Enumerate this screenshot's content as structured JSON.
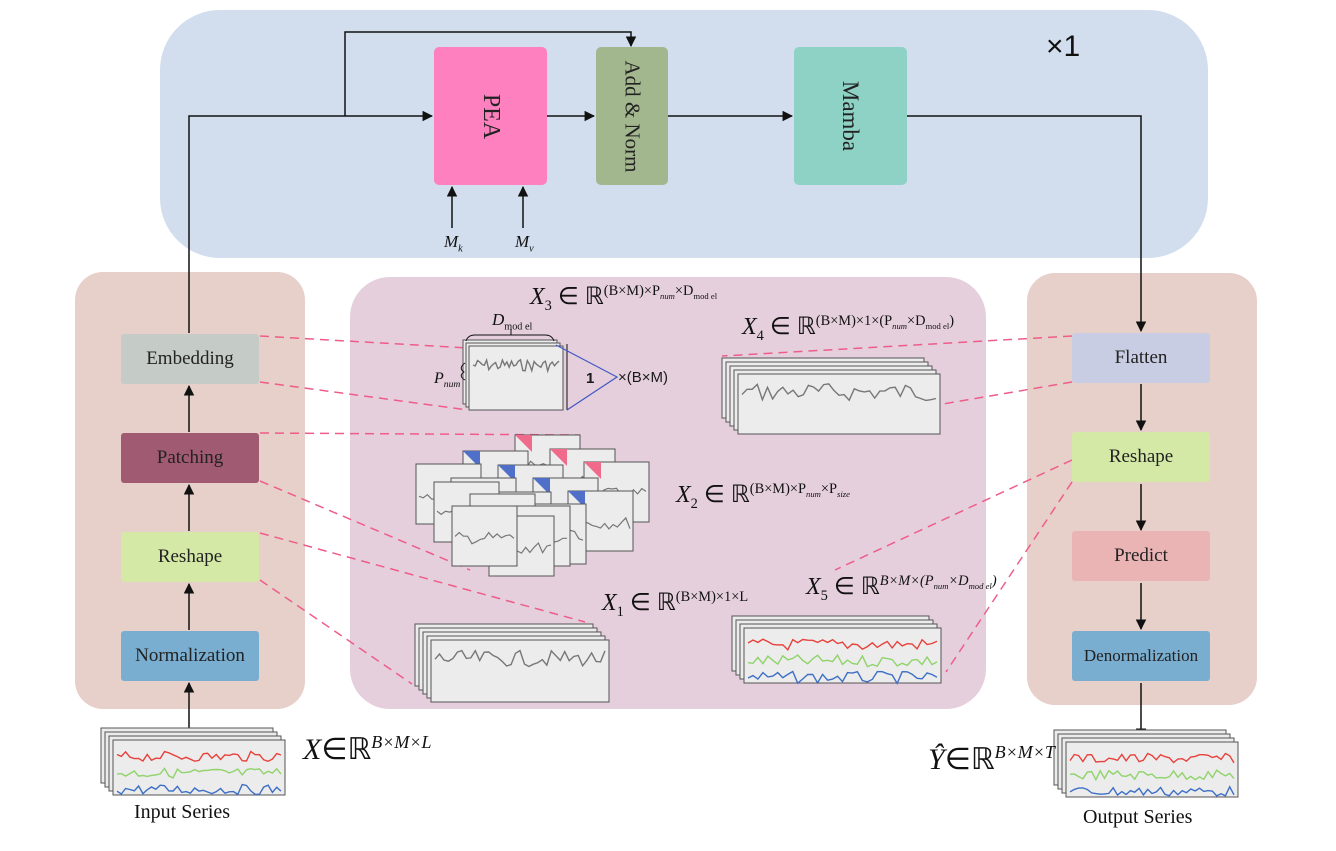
{
  "colors": {
    "top_panel": "#d2deed",
    "side_panel": "#e7cfca",
    "center_panel": "#e5cfdd",
    "pea": "#ff80bf",
    "addnorm": "#a3b78f",
    "mamba": "#8ed1c5",
    "embedding": "#c5ccc8",
    "patching": "#a05a72",
    "reshape": "#d5e9a6",
    "normalization": "#7aaed0",
    "flatten": "#c9cde3",
    "predict": "#eab4b4",
    "denormalization": "#7aaed0",
    "dashed_link": "#ee5d8a",
    "series_red": "#e8413c",
    "series_green": "#8fd36a",
    "series_blue": "#3d6fc6",
    "series_gray": "#777777",
    "patch_blue": "#4f6fc8",
    "patch_pink": "#f06a8c"
  },
  "top": {
    "repeat": "×1",
    "pea": "PEA",
    "addnorm": "Add & Norm",
    "mamba": "Mamba",
    "mk": {
      "base": "M",
      "sub": "k"
    },
    "mv": {
      "base": "M",
      "sub": "v"
    }
  },
  "left": {
    "embedding": "Embedding",
    "patching": "Patching",
    "reshape": "Reshape",
    "normalization": "Normalization"
  },
  "right": {
    "flatten": "Flatten",
    "reshape": "Reshape",
    "predict": "Predict",
    "denormalization": "Denormalization"
  },
  "center": {
    "x3": {
      "base": "X",
      "sub": "3",
      "rel": " ∈ ℝ",
      "sup": "(B×M)×P",
      "sup2": "num",
      "sup3": "×D",
      "sup4": "mod el"
    },
    "x4": {
      "base": "X",
      "sub": "4",
      "rel": " ∈ ℝ",
      "sup": "(B×M)×1×(P",
      "sup2": "num",
      "sup3": "×D",
      "sup4": "mod el",
      "sup5": ")"
    },
    "x2": {
      "base": "X",
      "sub": "2",
      "rel": " ∈ ℝ",
      "sup": "(B×M)×P",
      "sup2": "num",
      "sup3": "×P",
      "sup4": "size"
    },
    "x1": {
      "base": "X",
      "sub": "1",
      "rel": " ∈ ℝ",
      "sup": "(B×M)×1×L"
    },
    "x5": {
      "base": "X",
      "sub": "5",
      "rel": " ∈ ℝ",
      "sup": "B×M×(P",
      "sup2": "num",
      "sup3": "×D",
      "sup4": "mod el",
      "sup5": ")"
    },
    "dmodel": {
      "base": "D",
      "sub": "mod el"
    },
    "pnum": {
      "base": "P",
      "sub": "num"
    },
    "one": "1",
    "bm": "×(B×M)"
  },
  "bottom": {
    "input_math": {
      "base": "X",
      "rel": "∈ℝ",
      "sup": "B×M×L"
    },
    "output_math": {
      "base": "Ŷ",
      "rel": "∈ℝ",
      "sup": "B×M×T"
    },
    "input_label": "Input Series",
    "output_label": "Output Series"
  }
}
